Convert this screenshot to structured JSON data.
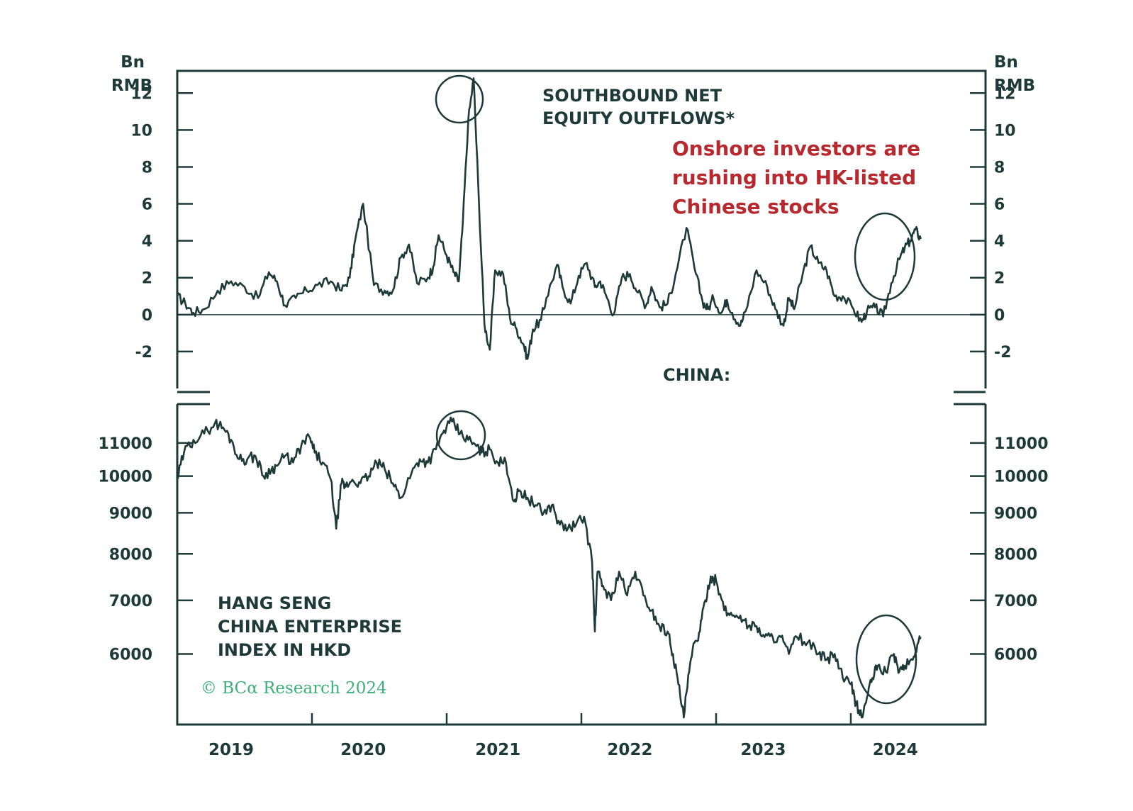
{
  "colors": {
    "line": "#1e3a38",
    "frame": "#1e3a38",
    "annotation": "#b8282f",
    "copyright": "#3bb07a",
    "background": "#ffffff"
  },
  "panel_header": "CHINA:",
  "annotation": [
    "Onshore investors are",
    "rushing into HK-listed",
    "Chinese stocks"
  ],
  "copyright": "© BCα Research 2024",
  "chart_data": [
    {
      "type": "line",
      "title": [
        "SOUTHBOUND NET",
        "EQUITY OUTFLOWS*"
      ],
      "unit_label": [
        "Bn",
        "RMB"
      ],
      "ylim": [
        -4,
        13.2
      ],
      "yticks": [
        -2,
        0,
        2,
        4,
        6,
        8,
        10,
        12
      ],
      "ytick_labels": [
        "-2",
        "0",
        "2",
        "4",
        "6",
        "8",
        "10",
        "12"
      ],
      "xlim": [
        2018.6,
        2024.6
      ],
      "zero_line": 0,
      "series": [
        {
          "name": "Southbound net equity outflows",
          "x": [
            2018.6,
            2018.66,
            2018.72,
            2018.8,
            2018.9,
            2019.0,
            2019.1,
            2019.2,
            2019.28,
            2019.34,
            2019.4,
            2019.48,
            2019.56,
            2019.64,
            2019.74,
            2019.82,
            2019.88,
            2019.92,
            2019.98,
            2020.06,
            2020.14,
            2020.2,
            2020.26,
            2020.32,
            2020.38,
            2020.46,
            2020.5,
            2020.54,
            2020.6,
            2020.65,
            2020.69,
            2020.72,
            2020.76,
            2020.8,
            2020.84,
            2020.88,
            2020.92,
            2020.96,
            2021.02,
            2021.07,
            2021.12,
            2021.17,
            2021.2,
            2021.24,
            2021.3,
            2021.34,
            2021.42,
            2021.46,
            2021.52,
            2021.58,
            2021.64,
            2021.7,
            2021.74,
            2021.78,
            2021.84,
            2021.9,
            2021.96,
            2022.02,
            2022.08,
            2022.12,
            2022.18,
            2022.24,
            2022.3,
            2022.38,
            2022.44,
            2022.5,
            2022.54,
            2022.58,
            2022.64,
            2022.68,
            2022.72,
            2022.78,
            2022.82,
            2022.9,
            2022.98,
            2023.04,
            2023.1,
            2023.14,
            2023.18,
            2023.24,
            2023.3,
            2023.36,
            2023.42,
            2023.48,
            2023.54,
            2023.62,
            2023.68,
            2023.72,
            2023.78,
            2023.84,
            2023.9,
            2023.96,
            2024.0,
            2024.04,
            2024.08,
            2024.12
          ],
          "values": [
            1.0,
            0.6,
            0.1,
            0.3,
            1.3,
            1.8,
            1.5,
            0.9,
            2.3,
            1.8,
            0.5,
            0.9,
            1.3,
            1.6,
            1.8,
            1.3,
            2.0,
            4.0,
            6.0,
            1.6,
            1.3,
            1.3,
            3.1,
            3.8,
            1.7,
            2.0,
            2.6,
            4.3,
            3.2,
            2.3,
            1.8,
            5.0,
            10.5,
            12.8,
            6.0,
            -0.5,
            -1.9,
            2.4,
            2.2,
            -0.2,
            -0.8,
            -1.6,
            -2.4,
            -0.8,
            -0.3,
            0.9,
            2.7,
            1.5,
            0.6,
            2.1,
            2.8,
            1.5,
            1.8,
            1.1,
            0.0,
            2.0,
            2.2,
            1.2,
            0.5,
            1.5,
            0.4,
            0.6,
            2.2,
            4.7,
            2.5,
            0.7,
            0.3,
            0.9,
            0.1,
            0.8,
            0.1,
            -0.6,
            0.2,
            2.4,
            1.5,
            0.3,
            -0.6,
            0.9,
            0.3,
            2.1,
            3.7,
            2.8,
            2.4,
            1.0,
            1.0,
            0.3,
            -0.4,
            0.2,
            0.4,
            -0.1,
            1.7,
            3.0,
            3.6,
            4.0,
            4.6,
            4.1
          ]
        }
      ]
    },
    {
      "type": "line",
      "title": [
        "HANG SENG",
        "CHINA ENTERPRISE",
        "INDEX IN HKD"
      ],
      "scale": "log",
      "ylim": [
        4900,
        12300
      ],
      "yticks": [
        6000,
        7000,
        8000,
        9000,
        10000,
        11000
      ],
      "ytick_labels": [
        "6000",
        "7000",
        "8000",
        "9000",
        "10000",
        "11000"
      ],
      "xlim": [
        2018.6,
        2024.6
      ],
      "xticks": [
        2018.6,
        2019.6,
        2020.6,
        2021.6,
        2022.6,
        2023.6
      ],
      "x_labels": [
        {
          "x": 2019,
          "label": "2019"
        },
        {
          "x": 2019.98,
          "label": "2020"
        },
        {
          "x": 2020.98,
          "label": "2021"
        },
        {
          "x": 2021.96,
          "label": "2022"
        },
        {
          "x": 2022.95,
          "label": "2023"
        },
        {
          "x": 2023.93,
          "label": "2024"
        }
      ],
      "series": [
        {
          "name": "Hang Seng China Enterprise Index",
          "x": [
            2018.6,
            2018.65,
            2018.72,
            2018.8,
            2018.88,
            2018.94,
            2019.0,
            2019.06,
            2019.12,
            2019.18,
            2019.24,
            2019.3,
            2019.34,
            2019.4,
            2019.46,
            2019.52,
            2019.58,
            2019.62,
            2019.68,
            2019.74,
            2019.78,
            2019.82,
            2019.85,
            2019.9,
            2019.96,
            2020.02,
            2020.08,
            2020.14,
            2020.2,
            2020.26,
            2020.34,
            2020.4,
            2020.46,
            2020.52,
            2020.58,
            2020.64,
            2020.7,
            2020.76,
            2020.82,
            2020.86,
            2020.92,
            2020.98,
            2021.04,
            2021.1,
            2021.14,
            2021.2,
            2021.26,
            2021.32,
            2021.38,
            2021.44,
            2021.5,
            2021.56,
            2021.62,
            2021.68,
            2021.7,
            2021.72,
            2021.76,
            2021.82,
            2021.88,
            2021.94,
            2022.0,
            2022.06,
            2022.12,
            2022.18,
            2022.24,
            2022.28,
            2022.32,
            2022.36,
            2022.4,
            2022.44,
            2022.48,
            2022.52,
            2022.56,
            2022.6,
            2022.66,
            2022.72,
            2022.78,
            2022.84,
            2022.9,
            2022.96,
            2023.02,
            2023.08,
            2023.14,
            2023.2,
            2023.28,
            2023.36,
            2023.42,
            2023.48,
            2023.54,
            2023.6,
            2023.64,
            2023.68,
            2023.72,
            2023.76,
            2023.8,
            2023.86,
            2023.92,
            2023.96,
            2024.0,
            2024.06,
            2024.1,
            2024.12
          ],
          "values": [
            9900,
            10700,
            11100,
            11300,
            11650,
            11500,
            11100,
            10500,
            10500,
            10600,
            10000,
            10200,
            10300,
            10600,
            10400,
            10900,
            11200,
            10700,
            10400,
            9900,
            8600,
            9800,
            9700,
            9900,
            9800,
            10000,
            10400,
            10200,
            9800,
            9400,
            10100,
            10500,
            10400,
            10800,
            11400,
            11700,
            11300,
            11100,
            10900,
            10700,
            10800,
            10400,
            10400,
            9300,
            9600,
            9400,
            9200,
            9000,
            9200,
            8700,
            8600,
            8700,
            8900,
            7800,
            6400,
            7600,
            7300,
            7000,
            7600,
            7100,
            7600,
            7100,
            6800,
            6500,
            6400,
            6000,
            5500,
            5000,
            5700,
            6200,
            6400,
            7000,
            7500,
            7400,
            6800,
            6700,
            6700,
            6500,
            6500,
            6300,
            6300,
            6300,
            6000,
            6300,
            6200,
            6000,
            5900,
            6000,
            5600,
            5500,
            5200,
            5000,
            5300,
            5600,
            5800,
            5700,
            6000,
            5700,
            5800,
            5900,
            6200,
            6300
          ]
        }
      ]
    }
  ]
}
